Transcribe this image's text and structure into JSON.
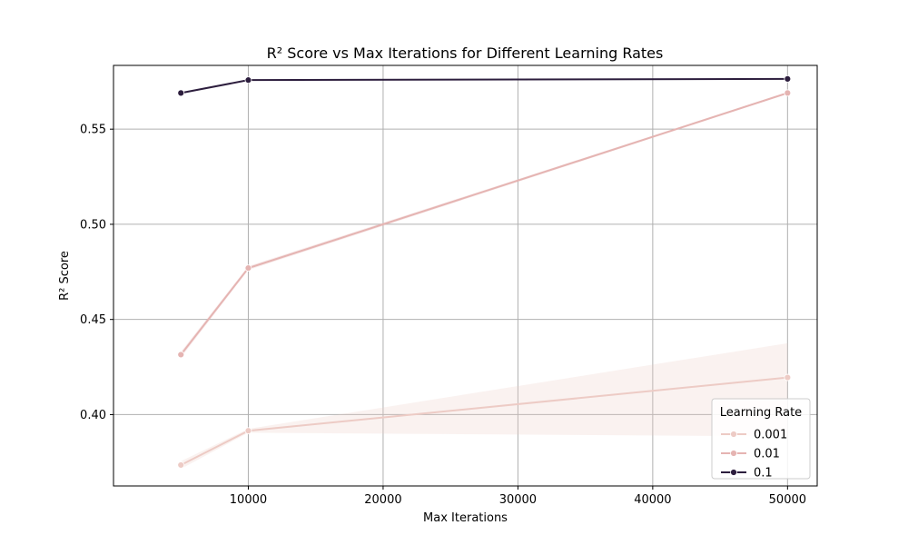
{
  "chart_data": {
    "type": "line",
    "title": "R² Score vs Max Iterations for Different Learning Rates",
    "xlabel": "Max Iterations",
    "ylabel": "R² Score",
    "xlim": [
      0,
      52200
    ],
    "ylim": [
      0.3625,
      0.5835
    ],
    "xticks": [
      10000,
      20000,
      30000,
      40000,
      50000
    ],
    "xtick_labels": [
      "10000",
      "20000",
      "30000",
      "40000",
      "50000"
    ],
    "yticks": [
      0.4,
      0.45,
      0.5,
      0.55
    ],
    "ytick_labels": [
      "0.40",
      "0.45",
      "0.50",
      "0.55"
    ],
    "grid": true,
    "legend": {
      "title": "Learning Rate",
      "placement": "lower-right"
    },
    "x": [
      5000,
      10000,
      50000
    ],
    "series": [
      {
        "name": "0.001",
        "color": "#edcbc5",
        "values": [
          0.3735,
          0.3915,
          0.4195
        ],
        "ci_lower": [
          0.3715,
          0.3905,
          0.3885
        ],
        "ci_upper": [
          0.3755,
          0.3925,
          0.4375
        ]
      },
      {
        "name": "0.01",
        "color": "#e5b4b2",
        "values": [
          0.4315,
          0.477,
          0.569
        ],
        "ci_lower": [
          0.43,
          0.476,
          0.5685
        ],
        "ci_upper": [
          0.433,
          0.478,
          0.5695
        ]
      },
      {
        "name": "0.1",
        "color": "#2d1e3e",
        "values": [
          0.569,
          0.5758,
          0.5764
        ],
        "ci_lower": [
          0.569,
          0.5758,
          0.5764
        ],
        "ci_upper": [
          0.569,
          0.5758,
          0.5764
        ]
      }
    ]
  }
}
